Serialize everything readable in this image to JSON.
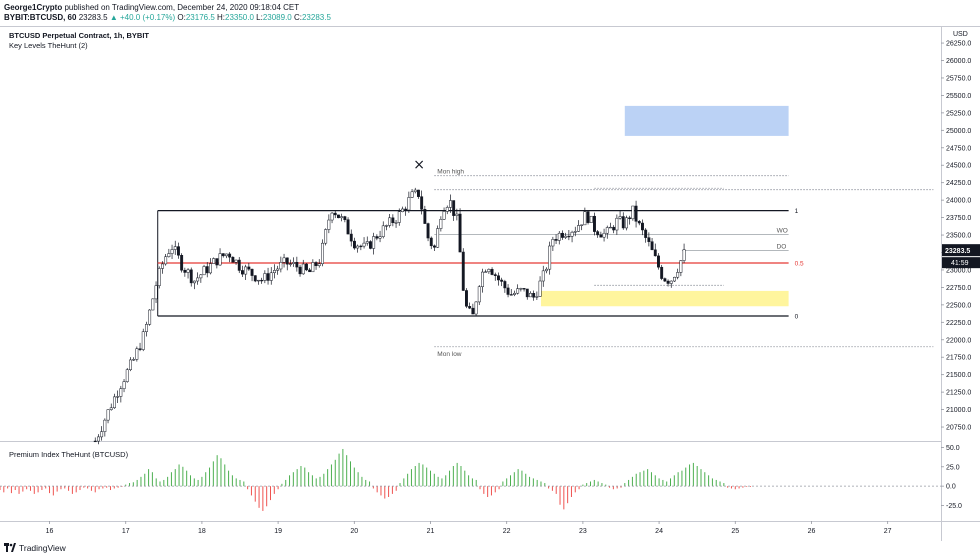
{
  "header": {
    "author": "George1Crypto",
    "published_text": "published on TradingView.com, December 24, 2020 09:18:04 CET",
    "ticker": "BYBIT:BTCUSD, 60",
    "last": "23283.5",
    "change": "+40.0 (+0.17%)",
    "open_label": "O:",
    "open": "23176.5",
    "high_label": "H:",
    "high": "23350.0",
    "low_label": "L:",
    "low": "23089.0",
    "close_label": "C:",
    "close": "23283.5"
  },
  "legend": {
    "title": "BTCUSD Perpetual Contract, 1h, BYBIT",
    "indicator": "Key Levels TheHunt (2)",
    "premium": "Premium Index TheHunt (BTCUSD)"
  },
  "footer": {
    "brand": "TradingView"
  },
  "chart_data": [
    {
      "type": "candlestick",
      "currency": "USD",
      "yticks": [
        20750,
        21000,
        21250,
        21500,
        21750,
        22000,
        22250,
        22500,
        22750,
        23000,
        23250,
        23500,
        23750,
        24000,
        24250,
        24500,
        24750,
        25000,
        25250,
        25500,
        25750,
        26000,
        26250
      ],
      "ylim": [
        20550,
        26480
      ],
      "x_ticks": [
        "16",
        "17",
        "18",
        "19",
        "20",
        "21",
        "22",
        "23",
        "24",
        "25",
        "26",
        "27"
      ],
      "x_tick_values": [
        16,
        17,
        18,
        19,
        20,
        21,
        22,
        23,
        24,
        25,
        26,
        27
      ],
      "xlim": [
        15.35,
        27.7
      ],
      "last_price_label": "23283.5",
      "countdown_label": "41:59",
      "levels": [
        {
          "label": "1",
          "value": 23850,
          "color": "#131722",
          "x_start": 17.42,
          "x_end": 25.7
        },
        {
          "label": "0.5",
          "value": 23100,
          "color": "#e53935",
          "x_start": 17.42,
          "x_end": 25.7
        },
        {
          "label": "0",
          "value": 22340,
          "color": "#131722",
          "x_start": 17.42,
          "x_end": 25.7
        }
      ],
      "dotted_levels": [
        {
          "label": "Mon high",
          "value": 24350,
          "x_start": 21.05,
          "x_end": 25.7
        },
        {
          "label": "",
          "value": 24150,
          "x_start": 21.05,
          "x_end": 27.6
        },
        {
          "label": "Mon low",
          "value": 21900,
          "x_start": 21.05,
          "x_end": 27.6
        },
        {
          "label": "",
          "value": 24170,
          "x_start": 23.15,
          "x_end": 24.85
        },
        {
          "label": "",
          "value": 22780,
          "x_start": 23.15,
          "x_end": 24.85
        }
      ],
      "short_levels": [
        {
          "label": "WO",
          "value": 23510,
          "x_start": 21.05,
          "x_end": 25.7
        },
        {
          "label": "DO",
          "value": 23280,
          "x_start": 24.3,
          "x_end": 25.7
        }
      ],
      "zones": [
        {
          "color": "#bbd2f5",
          "y_from": 24920,
          "y_to": 25350,
          "x_from": 23.55,
          "x_to": 25.7
        },
        {
          "color": "#fff59d",
          "y_from": 22480,
          "y_to": 22700,
          "x_from": 22.45,
          "x_to": 25.7
        }
      ],
      "marker": {
        "symbol": "×",
        "x": 20.85,
        "value": 24500
      },
      "trend_path": [
        [
          16.6,
          20550
        ],
        [
          16.7,
          20800
        ],
        [
          16.8,
          21050
        ],
        [
          16.95,
          21400
        ],
        [
          17.1,
          21700
        ],
        [
          17.25,
          22100
        ],
        [
          17.4,
          22800
        ],
        [
          17.5,
          23150
        ],
        [
          17.6,
          23350
        ],
        [
          17.75,
          23050
        ],
        [
          17.9,
          22850
        ],
        [
          18.05,
          23000
        ],
        [
          18.2,
          23150
        ],
        [
          18.35,
          23250
        ],
        [
          18.5,
          23050
        ],
        [
          18.65,
          22950
        ],
        [
          18.8,
          22850
        ],
        [
          18.95,
          23000
        ],
        [
          19.1,
          23100
        ],
        [
          19.25,
          23050
        ],
        [
          19.4,
          22950
        ],
        [
          19.55,
          23150
        ],
        [
          19.7,
          23900
        ],
        [
          19.85,
          23700
        ],
        [
          20.0,
          23400
        ],
        [
          20.15,
          23300
        ],
        [
          20.3,
          23500
        ],
        [
          20.45,
          23650
        ],
        [
          20.6,
          23800
        ],
        [
          20.75,
          24050
        ],
        [
          20.85,
          24100
        ],
        [
          20.95,
          23500
        ],
        [
          21.05,
          23300
        ],
        [
          21.15,
          23900
        ],
        [
          21.25,
          24000
        ],
        [
          21.35,
          23700
        ],
        [
          21.45,
          22500
        ],
        [
          21.55,
          22300
        ],
        [
          21.65,
          22900
        ],
        [
          21.75,
          23100
        ],
        [
          21.9,
          22850
        ],
        [
          22.05,
          22650
        ],
        [
          22.2,
          22700
        ],
        [
          22.35,
          22600
        ],
        [
          22.5,
          22950
        ],
        [
          22.6,
          23450
        ],
        [
          22.75,
          23550
        ],
        [
          22.9,
          23600
        ],
        [
          23.05,
          23800
        ],
        [
          23.15,
          23600
        ],
        [
          23.3,
          23500
        ],
        [
          23.45,
          23700
        ],
        [
          23.55,
          23650
        ],
        [
          23.65,
          23850
        ],
        [
          23.75,
          23600
        ],
        [
          23.85,
          23400
        ],
        [
          23.95,
          23150
        ],
        [
          24.05,
          22900
        ],
        [
          24.15,
          22850
        ],
        [
          24.25,
          23050
        ],
        [
          24.35,
          23280
        ]
      ]
    },
    {
      "type": "bar",
      "name": "Premium Index TheHunt (BTCUSD)",
      "yticks": [
        50,
        25,
        0,
        -25
      ],
      "ylim": [
        -45,
        57
      ],
      "xlim": [
        15.35,
        27.7
      ],
      "x_start": 15.35,
      "x_step": 0.05,
      "values": [
        -5,
        -8,
        -3,
        -9,
        -5,
        -10,
        -7,
        -4,
        -6,
        -10,
        -8,
        -5,
        -3,
        -9,
        -12,
        -7,
        -4,
        -3,
        -6,
        -10,
        -8,
        -5,
        -2,
        -3,
        -6,
        -8,
        -4,
        -3,
        -2,
        -5,
        -3,
        -2,
        -1,
        2,
        4,
        5,
        8,
        12,
        16,
        22,
        18,
        10,
        6,
        8,
        12,
        18,
        22,
        28,
        25,
        20,
        14,
        10,
        8,
        12,
        18,
        24,
        32,
        40,
        36,
        28,
        20,
        14,
        10,
        8,
        6,
        -4,
        -12,
        -20,
        -28,
        -32,
        -26,
        -18,
        -10,
        -4,
        3,
        8,
        14,
        18,
        22,
        26,
        24,
        18,
        14,
        10,
        12,
        16,
        22,
        28,
        34,
        42,
        48,
        40,
        32,
        24,
        18,
        12,
        8,
        6,
        -3,
        -8,
        -12,
        -16,
        -14,
        -10,
        -6,
        4,
        10,
        16,
        22,
        26,
        30,
        28,
        24,
        20,
        16,
        12,
        10,
        14,
        20,
        26,
        30,
        26,
        20,
        14,
        10,
        8,
        -4,
        -10,
        -14,
        -12,
        -8,
        -4,
        6,
        10,
        14,
        18,
        22,
        20,
        16,
        12,
        10,
        8,
        6,
        4,
        -3,
        -6,
        -10,
        -24,
        -30,
        -22,
        -14,
        -8,
        -4,
        2,
        4,
        6,
        8,
        6,
        4,
        2,
        -2,
        -4,
        -3,
        -2,
        4,
        8,
        12,
        16,
        18,
        20,
        22,
        18,
        14,
        10,
        8,
        6,
        10,
        14,
        18,
        20,
        24,
        28,
        30,
        26,
        22,
        18,
        14,
        10,
        8,
        6,
        4,
        -2,
        -3,
        -4,
        -3,
        -2,
        -1,
        -1
      ]
    }
  ]
}
